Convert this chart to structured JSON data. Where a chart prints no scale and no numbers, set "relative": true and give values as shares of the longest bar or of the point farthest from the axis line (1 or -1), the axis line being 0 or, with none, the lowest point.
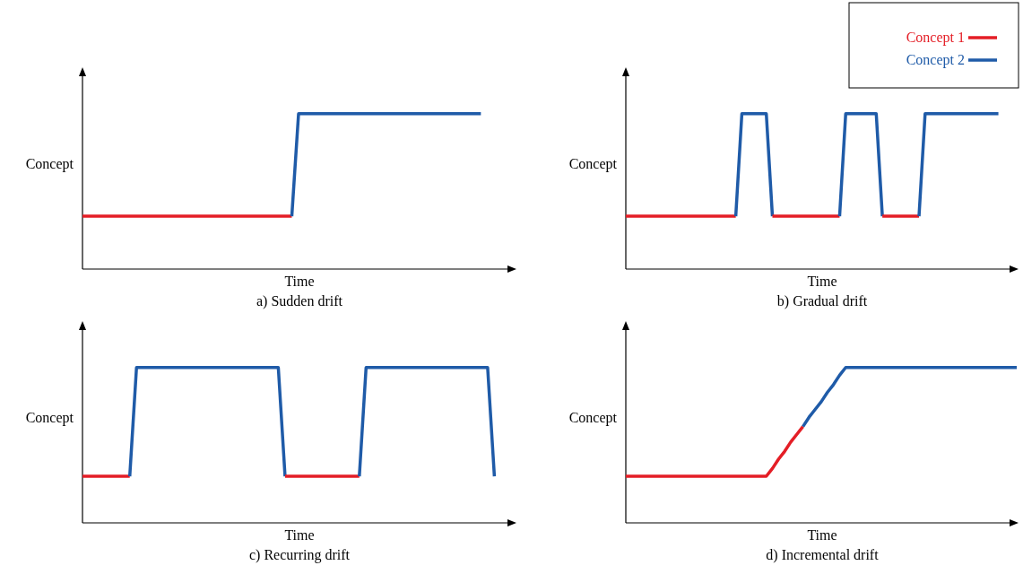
{
  "chart_data": [
    {
      "type": "line",
      "title": "a) Sudden drift",
      "xlabel": "Time",
      "ylabel": "Concept",
      "relative": true,
      "categories": [
        null,
        null,
        null,
        null,
        null,
        null,
        null,
        null,
        null,
        null,
        null,
        null,
        null,
        null,
        null,
        null,
        null,
        null,
        null,
        null,
        null,
        null,
        null,
        null,
        null,
        null,
        null,
        null,
        null,
        null,
        null,
        null,
        null,
        null,
        null,
        null,
        null,
        null,
        null,
        null,
        null,
        null,
        null,
        null,
        null,
        null,
        null,
        null,
        null,
        null,
        null,
        null,
        null,
        null,
        null,
        null,
        null,
        null,
        null,
        null,
        null,
        null,
        null,
        null,
        null
      ],
      "series": [
        {
          "color": "#e41e26",
          "values": [
            0.34,
            0.34,
            0.34,
            0.34,
            0.34,
            0.34,
            0.34,
            0.34,
            0.34,
            0.34,
            0.34,
            0.34,
            0.34,
            0.34,
            0.34,
            0.34,
            0.34,
            0.34,
            0.34,
            0.34,
            0.34,
            0.34,
            0.34,
            0.34,
            0.34,
            0.34,
            0.34,
            0.34,
            0.34,
            0.34,
            0.34,
            0.34,
            null,
            null,
            null,
            null,
            null,
            null,
            null,
            null,
            null,
            null,
            null,
            null,
            null,
            null,
            null,
            null,
            null,
            null,
            null,
            null,
            null,
            null,
            null,
            null,
            null,
            null,
            null,
            null,
            null,
            null,
            null,
            null,
            null
          ]
        },
        {
          "color": "#1f5ba8",
          "values": [
            null,
            null,
            null,
            null,
            null,
            null,
            null,
            null,
            null,
            null,
            null,
            null,
            null,
            null,
            null,
            null,
            null,
            null,
            null,
            null,
            null,
            null,
            null,
            null,
            null,
            null,
            null,
            null,
            null,
            null,
            null,
            0.34,
            1,
            1,
            1,
            1,
            1,
            1,
            1,
            1,
            1,
            1,
            1,
            1,
            1,
            1,
            1,
            1,
            1,
            1,
            1,
            1,
            1,
            1,
            1,
            1,
            1,
            1,
            1,
            1,
            null,
            null,
            null,
            null,
            null
          ]
        }
      ]
    },
    {
      "type": "line",
      "title": "b) Gradual drift",
      "xlabel": "Time",
      "ylabel": "Concept",
      "relative": true,
      "legend": "top right",
      "categories": [
        null,
        null,
        null,
        null,
        null,
        null,
        null,
        null,
        null,
        null,
        null,
        null,
        null,
        null,
        null,
        null,
        null,
        null,
        null,
        null,
        null,
        null,
        null,
        null,
        null,
        null,
        null,
        null,
        null,
        null,
        null,
        null,
        null,
        null,
        null,
        null,
        null,
        null,
        null,
        null,
        null,
        null,
        null,
        null,
        null,
        null,
        null,
        null,
        null,
        null,
        null,
        null,
        null,
        null,
        null,
        null,
        null,
        null,
        null,
        null,
        null,
        null,
        null,
        null,
        null
      ],
      "series": [
        {
          "name": "Concept 1",
          "color": "#e41e26",
          "values": [
            0.34,
            0.34,
            0.34,
            0.34,
            0.34,
            0.34,
            0.34,
            0.34,
            0.34,
            0.34,
            0.34,
            0.34,
            0.34,
            0.34,
            0.34,
            0.34,
            0.34,
            0.34,
            0.34,
            null,
            null,
            null,
            null,
            null,
            null,
            null,
            null,
            null,
            null,
            null,
            null,
            null,
            null,
            null,
            null,
            null,
            null,
            null,
            null,
            null,
            null,
            null,
            null,
            null,
            null,
            null,
            null,
            null,
            null,
            null,
            null,
            null,
            null,
            null,
            null,
            null,
            null,
            null,
            null,
            null,
            null,
            null,
            null,
            null,
            null
          ]
        },
        {
          "name": "Concept 2",
          "color": "#1f5ba8",
          "values": [
            null,
            null,
            null,
            null,
            null,
            null,
            null,
            null,
            null,
            null,
            null,
            null,
            null,
            null,
            null,
            null,
            null,
            null,
            0.34,
            1,
            1,
            1,
            1,
            1,
            0.34,
            null,
            null,
            null,
            null,
            null,
            null,
            null,
            null,
            null,
            null,
            null,
            null,
            null,
            null,
            null,
            null,
            null,
            null,
            null,
            null,
            null,
            null,
            null,
            null,
            null,
            null,
            null,
            null,
            null,
            null,
            null,
            null,
            null,
            null,
            null,
            null,
            null,
            null,
            null,
            null
          ]
        },
        {
          "color": "#e41e26",
          "values": [
            null,
            null,
            null,
            null,
            null,
            null,
            null,
            null,
            null,
            null,
            null,
            null,
            null,
            null,
            null,
            null,
            null,
            null,
            null,
            null,
            null,
            null,
            null,
            null,
            0.34,
            0.34,
            0.34,
            0.34,
            0.34,
            0.34,
            0.34,
            0.34,
            0.34,
            0.34,
            0.34,
            0.34,
            null,
            null,
            null,
            null,
            null,
            null,
            null,
            null,
            null,
            null,
            null,
            null,
            null,
            null,
            null,
            null,
            null,
            null,
            null,
            null,
            null,
            null,
            null,
            null,
            null,
            null,
            null,
            null,
            null
          ]
        },
        {
          "color": "#1f5ba8",
          "values": [
            null,
            null,
            null,
            null,
            null,
            null,
            null,
            null,
            null,
            null,
            null,
            null,
            null,
            null,
            null,
            null,
            null,
            null,
            null,
            null,
            null,
            null,
            null,
            null,
            null,
            null,
            null,
            null,
            null,
            null,
            null,
            null,
            null,
            null,
            null,
            0.34,
            1,
            1,
            1,
            1,
            1,
            1,
            0.34,
            null,
            null,
            null,
            null,
            null,
            null,
            null,
            null,
            null,
            null,
            null,
            null,
            null,
            null,
            null,
            null,
            null,
            null,
            null,
            null,
            null,
            null
          ]
        },
        {
          "color": "#e41e26",
          "values": [
            null,
            null,
            null,
            null,
            null,
            null,
            null,
            null,
            null,
            null,
            null,
            null,
            null,
            null,
            null,
            null,
            null,
            null,
            null,
            null,
            null,
            null,
            null,
            null,
            null,
            null,
            null,
            null,
            null,
            null,
            null,
            null,
            null,
            null,
            null,
            null,
            null,
            null,
            null,
            null,
            null,
            null,
            0.34,
            0.34,
            0.34,
            0.34,
            0.34,
            0.34,
            0.34,
            null,
            null,
            null,
            null,
            null,
            null,
            null,
            null,
            null,
            null,
            null,
            null,
            null,
            null,
            null,
            null
          ]
        },
        {
          "color": "#1f5ba8",
          "values": [
            null,
            null,
            null,
            null,
            null,
            null,
            null,
            null,
            null,
            null,
            null,
            null,
            null,
            null,
            null,
            null,
            null,
            null,
            null,
            null,
            null,
            null,
            null,
            null,
            null,
            null,
            null,
            null,
            null,
            null,
            null,
            null,
            null,
            null,
            null,
            null,
            null,
            null,
            null,
            null,
            null,
            null,
            null,
            null,
            null,
            null,
            null,
            null,
            0.34,
            1,
            1,
            1,
            1,
            1,
            1,
            1,
            1,
            1,
            1,
            1,
            1,
            1,
            null,
            null,
            null
          ]
        }
      ]
    },
    {
      "type": "line",
      "title": "c) Recurring drift",
      "xlabel": "Time",
      "ylabel": "Concept",
      "relative": true,
      "categories": [
        null,
        null,
        null,
        null,
        null,
        null,
        null,
        null,
        null,
        null,
        null,
        null,
        null,
        null,
        null,
        null,
        null,
        null,
        null,
        null,
        null,
        null,
        null,
        null,
        null,
        null,
        null,
        null,
        null,
        null,
        null,
        null,
        null,
        null,
        null,
        null,
        null,
        null,
        null,
        null,
        null,
        null,
        null,
        null,
        null,
        null,
        null,
        null,
        null,
        null,
        null,
        null,
        null,
        null,
        null,
        null,
        null,
        null,
        null,
        null,
        null,
        null,
        null,
        null,
        null
      ],
      "series": [
        {
          "color": "#e41e26",
          "values": [
            0.3,
            0.3,
            0.3,
            0.3,
            0.3,
            0.3,
            0.3,
            0.3,
            null,
            null,
            null,
            null,
            null,
            null,
            null,
            null,
            null,
            null,
            null,
            null,
            null,
            null,
            null,
            null,
            null,
            null,
            null,
            null,
            null,
            null,
            null,
            null,
            null,
            null,
            null,
            null,
            null,
            null,
            null,
            null,
            null,
            null,
            null,
            null,
            null,
            null,
            null,
            null,
            null,
            null,
            null,
            null,
            null,
            null,
            null,
            null,
            null,
            null,
            null,
            null,
            null,
            null,
            null,
            null,
            null
          ]
        },
        {
          "color": "#1f5ba8",
          "values": [
            null,
            null,
            null,
            null,
            null,
            null,
            null,
            0.3,
            1,
            1,
            1,
            1,
            1,
            1,
            1,
            1,
            1,
            1,
            1,
            1,
            1,
            1,
            1,
            1,
            1,
            1,
            1,
            1,
            1,
            1,
            0.3,
            null,
            null,
            null,
            null,
            null,
            null,
            null,
            null,
            null,
            null,
            null,
            null,
            null,
            null,
            null,
            null,
            null,
            null,
            null,
            null,
            null,
            null,
            null,
            null,
            null,
            null,
            null,
            null,
            null,
            null,
            null,
            null,
            null,
            null
          ]
        },
        {
          "color": "#e41e26",
          "values": [
            null,
            null,
            null,
            null,
            null,
            null,
            null,
            null,
            null,
            null,
            null,
            null,
            null,
            null,
            null,
            null,
            null,
            null,
            null,
            null,
            null,
            null,
            null,
            null,
            null,
            null,
            null,
            null,
            null,
            null,
            0.3,
            0.3,
            0.3,
            0.3,
            0.3,
            0.3,
            0.3,
            0.3,
            0.3,
            0.3,
            0.3,
            0.3,
            null,
            null,
            null,
            null,
            null,
            null,
            null,
            null,
            null,
            null,
            null,
            null,
            null,
            null,
            null,
            null,
            null,
            null,
            null,
            null,
            null,
            null,
            null
          ]
        },
        {
          "color": "#1f5ba8",
          "values": [
            null,
            null,
            null,
            null,
            null,
            null,
            null,
            null,
            null,
            null,
            null,
            null,
            null,
            null,
            null,
            null,
            null,
            null,
            null,
            null,
            null,
            null,
            null,
            null,
            null,
            null,
            null,
            null,
            null,
            null,
            null,
            null,
            null,
            null,
            null,
            null,
            null,
            null,
            null,
            null,
            null,
            0.3,
            1,
            1,
            1,
            1,
            1,
            1,
            1,
            1,
            1,
            1,
            1,
            1,
            1,
            1,
            1,
            1,
            1,
            1,
            1,
            0.3,
            null,
            null,
            null
          ]
        }
      ]
    },
    {
      "type": "line",
      "title": "d) Incremental drift",
      "xlabel": "Time",
      "ylabel": "Concept",
      "relative": true,
      "categories": [
        null,
        null,
        null,
        null,
        null,
        null,
        null,
        null,
        null,
        null,
        null,
        null,
        null,
        null,
        null,
        null,
        null,
        null,
        null,
        null,
        null,
        null,
        null,
        null,
        null,
        null,
        null,
        null,
        null,
        null,
        null,
        null,
        null,
        null,
        null,
        null,
        null,
        null,
        null,
        null,
        null,
        null,
        null,
        null,
        null,
        null,
        null,
        null,
        null,
        null,
        null,
        null,
        null,
        null,
        null,
        null,
        null,
        null,
        null,
        null,
        null,
        null,
        null,
        null,
        null
      ],
      "series": [
        {
          "color": "#e41e26",
          "values": [
            0.3,
            0.3,
            0.3,
            0.3,
            0.3,
            0.3,
            0.3,
            0.3,
            0.3,
            0.3,
            0.3,
            0.3,
            0.3,
            0.3,
            0.3,
            0.3,
            0.3,
            0.3,
            0.3,
            0.3,
            0.3,
            0.3,
            0.3,
            0.3,
            0.35,
            0.41,
            0.46,
            0.52,
            0.57,
            0.62,
            null,
            null,
            null,
            null,
            null,
            null,
            null,
            null,
            null,
            null,
            null,
            null,
            null,
            null,
            null,
            null,
            null,
            null,
            null,
            null,
            null,
            null,
            null,
            null,
            null,
            null,
            null,
            null,
            null,
            null,
            null,
            null,
            null,
            null,
            null
          ]
        },
        {
          "color": "#1f5ba8",
          "values": [
            null,
            null,
            null,
            null,
            null,
            null,
            null,
            null,
            null,
            null,
            null,
            null,
            null,
            null,
            null,
            null,
            null,
            null,
            null,
            null,
            null,
            null,
            null,
            null,
            null,
            null,
            null,
            null,
            null,
            0.62,
            0.68,
            0.73,
            0.78,
            0.84,
            0.89,
            0.95,
            1,
            1,
            1,
            1,
            1,
            1,
            1,
            1,
            1,
            1,
            1,
            1,
            1,
            1,
            1,
            1,
            1,
            1,
            1,
            1,
            1,
            1,
            1,
            1,
            1,
            1,
            1,
            1,
            1
          ]
        }
      ]
    }
  ]
}
